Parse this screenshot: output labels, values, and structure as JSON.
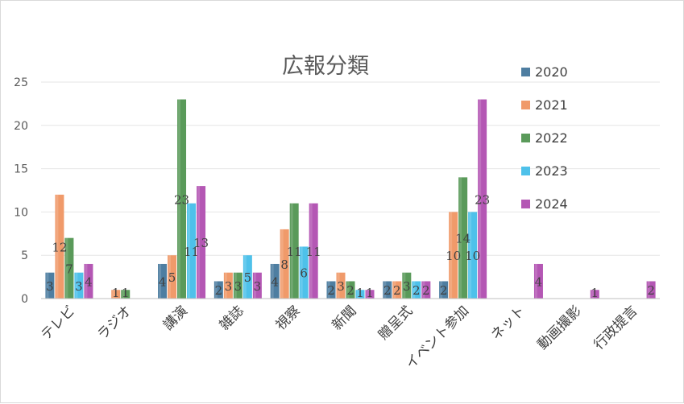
{
  "chart_data": {
    "type": "bar",
    "title": "広報分類",
    "categories": [
      "テレビ",
      "ラジオ",
      "講演",
      "雑誌",
      "視察",
      "新聞",
      "贈呈式",
      "イベント参加",
      "ネット",
      "動画撮影",
      "行政提言"
    ],
    "series": [
      {
        "name": "2020",
        "color": "#4e7ea1",
        "values": [
          3,
          null,
          4,
          2,
          4,
          2,
          2,
          2,
          null,
          null,
          null
        ]
      },
      {
        "name": "2021",
        "color": "#f09a6a",
        "values": [
          12,
          1,
          5,
          3,
          8,
          3,
          2,
          10,
          null,
          null,
          null
        ]
      },
      {
        "name": "2022",
        "color": "#5a9a5a",
        "values": [
          7,
          1,
          23,
          3,
          11,
          2,
          3,
          14,
          null,
          null,
          null
        ]
      },
      {
        "name": "2023",
        "color": "#4ec1ea",
        "values": [
          3,
          null,
          11,
          5,
          6,
          1,
          2,
          10,
          null,
          null,
          null
        ]
      },
      {
        "name": "2024",
        "color": "#b457b4",
        "values": [
          4,
          null,
          13,
          3,
          11,
          1,
          2,
          23,
          4,
          1,
          2
        ]
      }
    ],
    "ylim": [
      0,
      25
    ],
    "yticks": [
      0,
      5,
      10,
      15,
      20,
      25
    ],
    "grid": true,
    "legend_position": "right"
  }
}
